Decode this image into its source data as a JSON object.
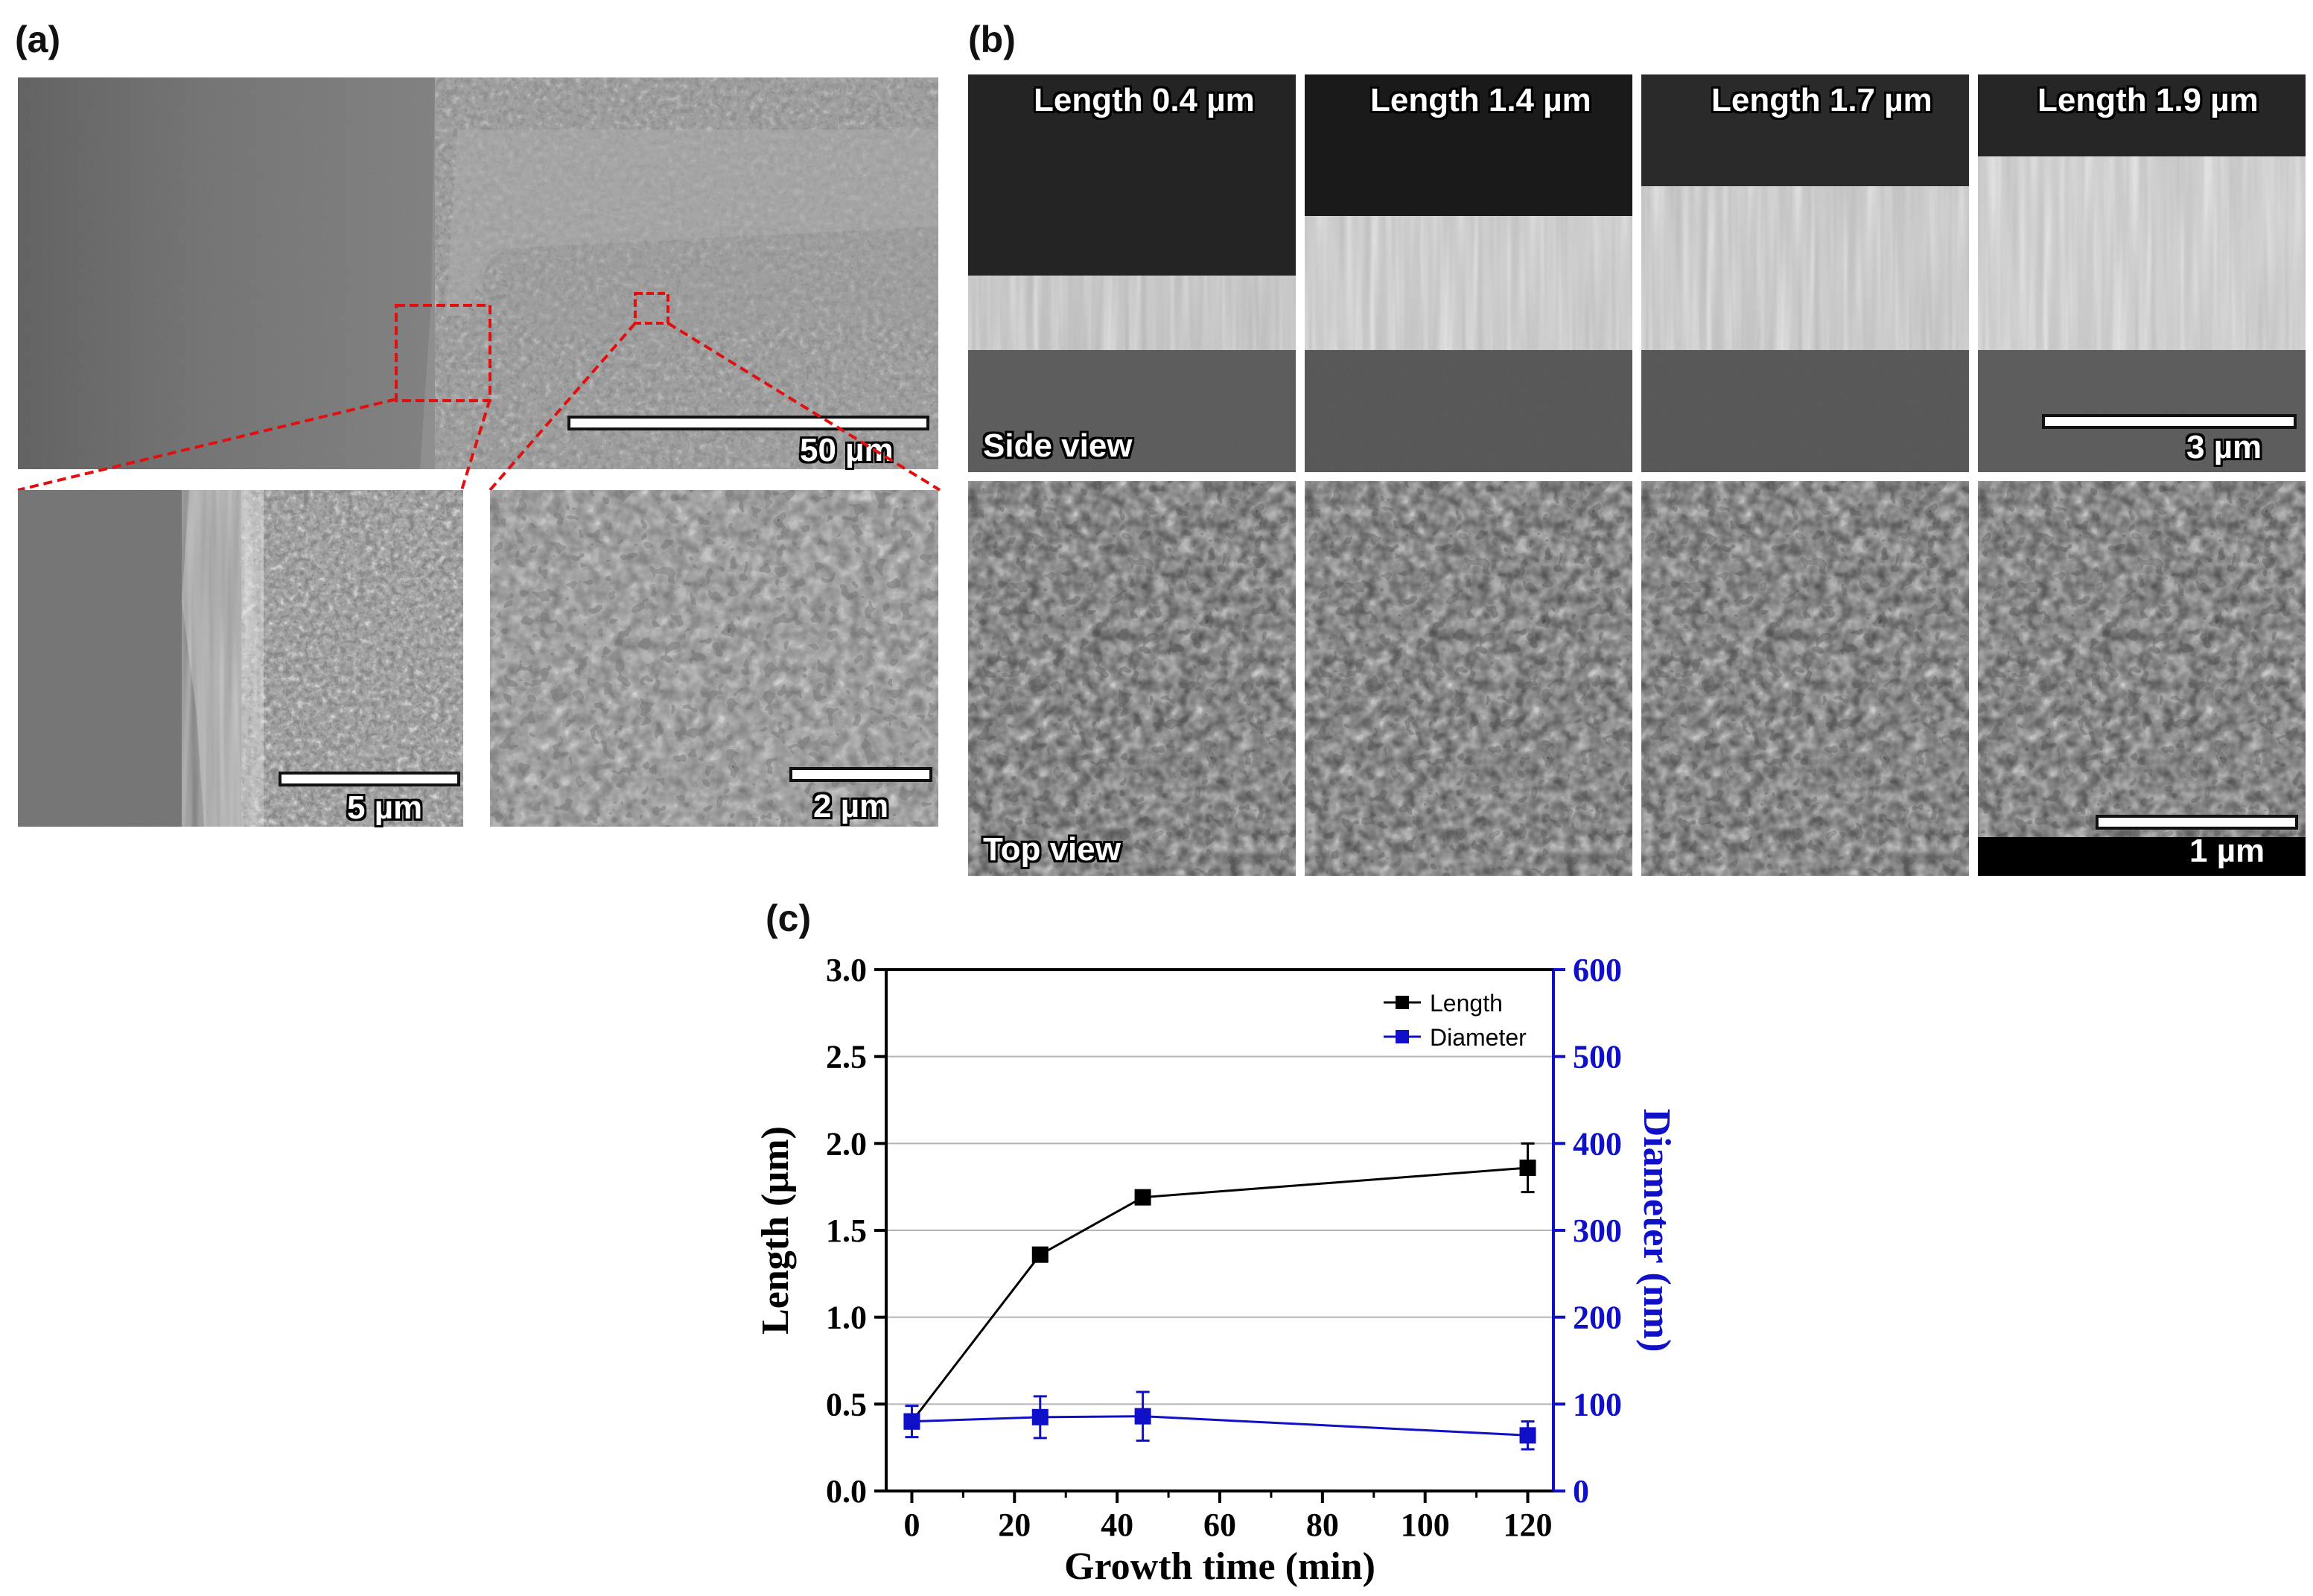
{
  "panel_a": {
    "letter": "(a)",
    "main_scalebar": "50 µm",
    "inset_left_scalebar": "5 µm",
    "inset_right_scalebar": "2 µm"
  },
  "panel_b": {
    "letter": "(b)",
    "columns": [
      {
        "length_label": "Length 0.4 µm"
      },
      {
        "length_label": "Length 1.4 µm"
      },
      {
        "length_label": "Length 1.7 µm"
      },
      {
        "length_label": "Length 1.9 µm"
      }
    ],
    "side_view_label": "Side view",
    "top_view_label": "Top view",
    "side_scalebar": "3 µm",
    "top_scalebar": "1 µm"
  },
  "panel_c": {
    "letter": "(c)"
  },
  "chart_data": {
    "type": "line",
    "xlabel": "Growth time (min)",
    "ylabel": "Length (µm)",
    "y2label": "Diameter (nm)",
    "xlim": [
      -5,
      125
    ],
    "ylim": [
      0,
      3.0
    ],
    "y2lim": [
      0,
      600
    ],
    "xticks": [
      0,
      20,
      40,
      60,
      80,
      100,
      120
    ],
    "yticks": [
      0.0,
      0.5,
      1.0,
      1.5,
      2.0,
      2.5,
      3.0
    ],
    "y2ticks": [
      0,
      100,
      200,
      300,
      400,
      500,
      600
    ],
    "xtick_labels": [
      "0",
      "20",
      "40",
      "60",
      "80",
      "100",
      "120"
    ],
    "ytick_labels": [
      "0.0",
      "0.5",
      "1.0",
      "1.5",
      "2.0",
      "2.5",
      "3.0"
    ],
    "y2tick_labels": [
      "0",
      "100",
      "200",
      "300",
      "400",
      "500",
      "600"
    ],
    "grid": true,
    "legend_position": "top-right",
    "series": [
      {
        "name": "Length",
        "axis": "left",
        "color": "#000000",
        "x": [
          0,
          25,
          45,
          120
        ],
        "y": [
          0.4,
          1.36,
          1.69,
          1.86
        ],
        "err": [
          0.02,
          0.03,
          0.03,
          0.14
        ]
      },
      {
        "name": "Diameter",
        "axis": "right",
        "color": "#1010c8",
        "x": [
          0,
          25,
          45,
          120
        ],
        "y": [
          80,
          85,
          86,
          64
        ],
        "err": [
          18,
          24,
          28,
          16
        ]
      }
    ]
  },
  "colors": {
    "left_axis": "#000000",
    "right_axis": "#1010c8",
    "callout": "#e01010"
  }
}
